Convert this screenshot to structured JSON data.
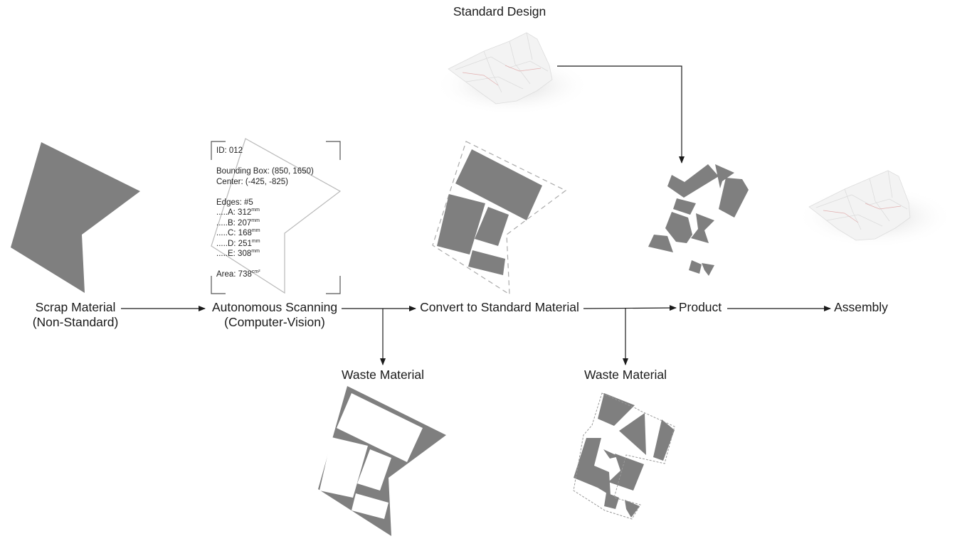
{
  "labels": {
    "standard_design": "Standard Design",
    "scrap_line1": "Scrap Material",
    "scrap_line2": "(Non-Standard)",
    "scan_line1": "Autonomous Scanning",
    "scan_line2": "(Computer-Vision)",
    "convert": "Convert to Standard Material",
    "product": "Product",
    "assembly": "Assembly",
    "waste1": "Waste Material",
    "waste2": "Waste Material"
  },
  "scan": {
    "id": "ID: 012",
    "bbox": "Bounding Box: (850, 1650)",
    "center": "Center: (-425, -825)",
    "edges_title": "Edges: #5",
    "edges": [
      {
        "prefix": ".....",
        "label": "A: 312",
        "unit": "mm"
      },
      {
        "prefix": ".....",
        "label": "B: 207",
        "unit": "mm"
      },
      {
        "prefix": ".....",
        "label": "C: 168",
        "unit": "mm"
      },
      {
        "prefix": ".....",
        "label": "D: 251",
        "unit": "mm"
      },
      {
        "prefix": ".....",
        "label": "E: 308",
        "unit": "mm"
      }
    ],
    "area": "Area: 738",
    "area_unit": "cm²"
  },
  "colors": {
    "shape_fill": "#7f7f7f",
    "line": "#1a1a1a",
    "outline": "#b5b5b5",
    "paper": "#f1f1f1"
  }
}
